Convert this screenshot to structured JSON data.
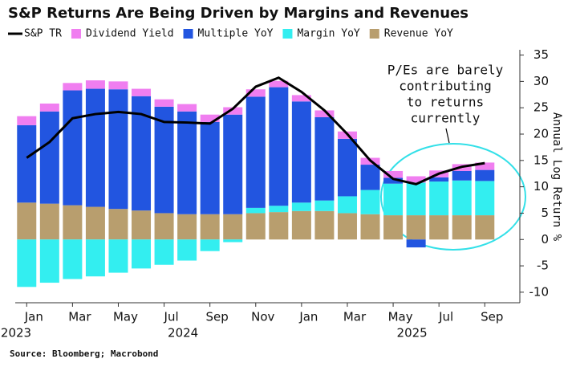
{
  "chart_data": {
    "type": "bar",
    "title": "S&P Returns Are Being Driven by Margins and Revenues",
    "y_axis_label": "Annual Log Return %",
    "source": "Source: Bloomberg; Macrobond",
    "annotation": [
      "P/Es are barely",
      "contributing",
      "to returns",
      "currently"
    ],
    "categories": [
      "Jan",
      null,
      "Mar",
      null,
      "May",
      null,
      "Jul",
      null,
      "Sep",
      null,
      "Nov",
      null,
      "Jan",
      null,
      "Mar",
      null,
      "May",
      null,
      "Jul",
      null,
      "Sep"
    ],
    "years": [
      "2023",
      null,
      null,
      null,
      null,
      null,
      null,
      "2024",
      null,
      null,
      null,
      null,
      null,
      null,
      null,
      null,
      null,
      "2025",
      null,
      null,
      null
    ],
    "series": [
      {
        "name": "S&P TR",
        "color": "#000000",
        "kind": "line",
        "values": [
          15.5,
          18.5,
          23,
          23.8,
          24.2,
          23.8,
          22.3,
          22.2,
          22,
          24.8,
          29,
          30.7,
          28,
          24.5,
          20,
          15,
          11.5,
          10.5,
          12.5,
          13.8,
          14.5
        ]
      },
      {
        "name": "Dividend Yield",
        "color": "#f07ef0",
        "kind": "bar",
        "values": [
          1.7,
          1.5,
          1.4,
          1.6,
          1.5,
          1.4,
          1.4,
          1.4,
          1.4,
          1.4,
          1.4,
          1.2,
          1.2,
          1.3,
          1.4,
          1.3,
          1.3,
          1.2,
          1.3,
          1.3,
          1.4
        ]
      },
      {
        "name": "Multiple YoY",
        "color": "#2255e0",
        "kind": "bar",
        "values": [
          14.7,
          17.5,
          21.8,
          22.4,
          22.7,
          21.7,
          20.2,
          19.5,
          17.5,
          18.9,
          21.1,
          22.5,
          19.2,
          15.8,
          10.9,
          4.8,
          1.1,
          -1.5,
          0.8,
          1.8,
          2.1
        ]
      },
      {
        "name": "Margin YoY",
        "color": "#33eef0",
        "kind": "bar",
        "values": [
          -9,
          -8.2,
          -7.5,
          -7,
          -6.3,
          -5.5,
          -4.8,
          -4,
          -2.2,
          -0.5,
          1,
          1.2,
          1.6,
          2,
          3.2,
          4.6,
          6,
          6.2,
          6.4,
          6.6,
          6.5
        ]
      },
      {
        "name": "Revenue YoY",
        "color": "#b89e6e",
        "kind": "bar",
        "values": [
          7,
          6.8,
          6.5,
          6.2,
          5.8,
          5.5,
          5,
          4.8,
          4.8,
          4.8,
          5,
          5.2,
          5.4,
          5.4,
          5,
          4.8,
          4.6,
          4.6,
          4.6,
          4.6,
          4.6
        ]
      }
    ],
    "ylim": [
      -12,
      36
    ],
    "yticks": [
      -10,
      -5,
      0,
      5,
      10,
      15,
      20,
      25,
      30,
      35
    ]
  }
}
